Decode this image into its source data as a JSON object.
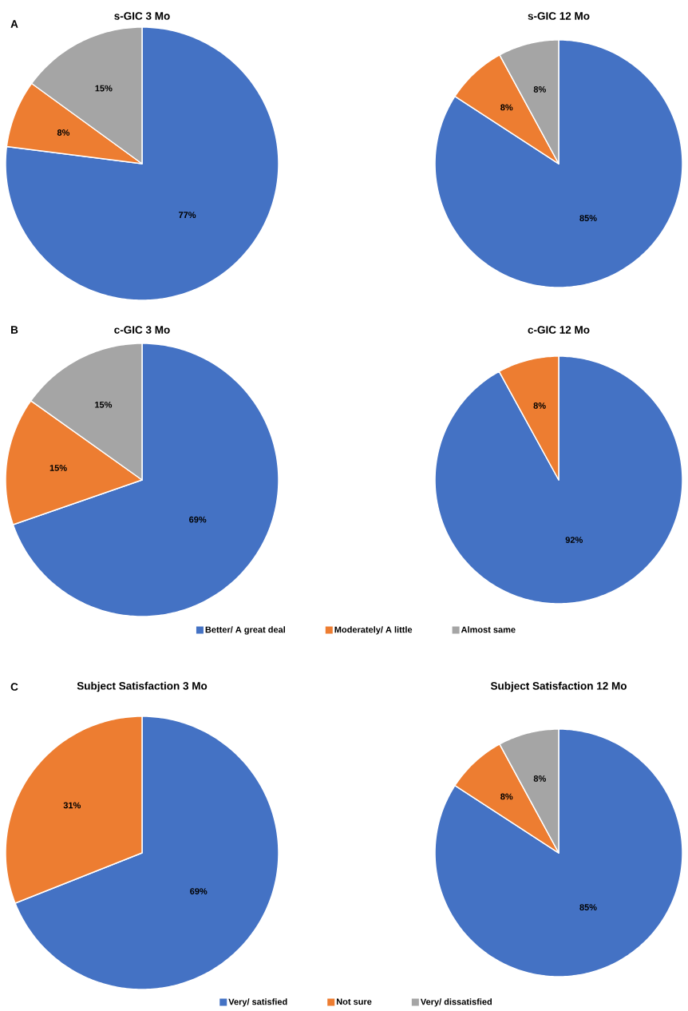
{
  "chart_data": [
    {
      "type": "pie",
      "title": "s-GIC 3 Mo",
      "annotations": [
        "A"
      ],
      "categories": [
        null,
        null,
        null
      ],
      "values": [
        77,
        8,
        15
      ],
      "value_labels": [
        "77%",
        "8%",
        "15%"
      ],
      "colors": [
        "#4472c4",
        "#ed7d31",
        "#a5a5a5"
      ]
    },
    {
      "type": "pie",
      "title": "s-GIC 12 Mo",
      "categories": [
        null,
        null,
        null
      ],
      "values": [
        85,
        8,
        8
      ],
      "value_labels": [
        "85%",
        "8%",
        "8%"
      ],
      "colors": [
        "#4472c4",
        "#ed7d31",
        "#a5a5a5"
      ]
    },
    {
      "type": "pie",
      "title": "c-GIC 3 Mo",
      "annotations": [
        "B"
      ],
      "categories": [
        "Better/ A great deal",
        "Moderately/ A little",
        "Almost same"
      ],
      "values": [
        69,
        15,
        15
      ],
      "value_labels": [
        "69%",
        "15%",
        "15%"
      ],
      "colors": [
        "#4472c4",
        "#ed7d31",
        "#a5a5a5"
      ],
      "legend": "bottom"
    },
    {
      "type": "pie",
      "title": "c-GIC 12 Mo",
      "categories": [
        null,
        null
      ],
      "values": [
        92,
        8
      ],
      "value_labels": [
        "92%",
        "8%"
      ],
      "colors": [
        "#4472c4",
        "#ed7d31"
      ]
    },
    {
      "type": "pie",
      "title": "Subject Satisfaction 3 Mo",
      "annotations": [
        "C"
      ],
      "categories": [
        null,
        null
      ],
      "values": [
        69,
        31
      ],
      "value_labels": [
        "69%",
        "31%"
      ],
      "colors": [
        "#4472c4",
        "#ed7d31"
      ]
    },
    {
      "type": "pie",
      "title": "Subject Satisfaction 12 Mo",
      "categories": [
        "Very/ satisfied",
        "Not sure",
        "Very/ dissatisfied"
      ],
      "values": [
        85,
        8,
        8
      ],
      "value_labels": [
        "85%",
        "8%",
        "8%"
      ],
      "colors": [
        "#4472c4",
        "#ed7d31",
        "#a5a5a5"
      ],
      "legend": "bottom"
    }
  ]
}
